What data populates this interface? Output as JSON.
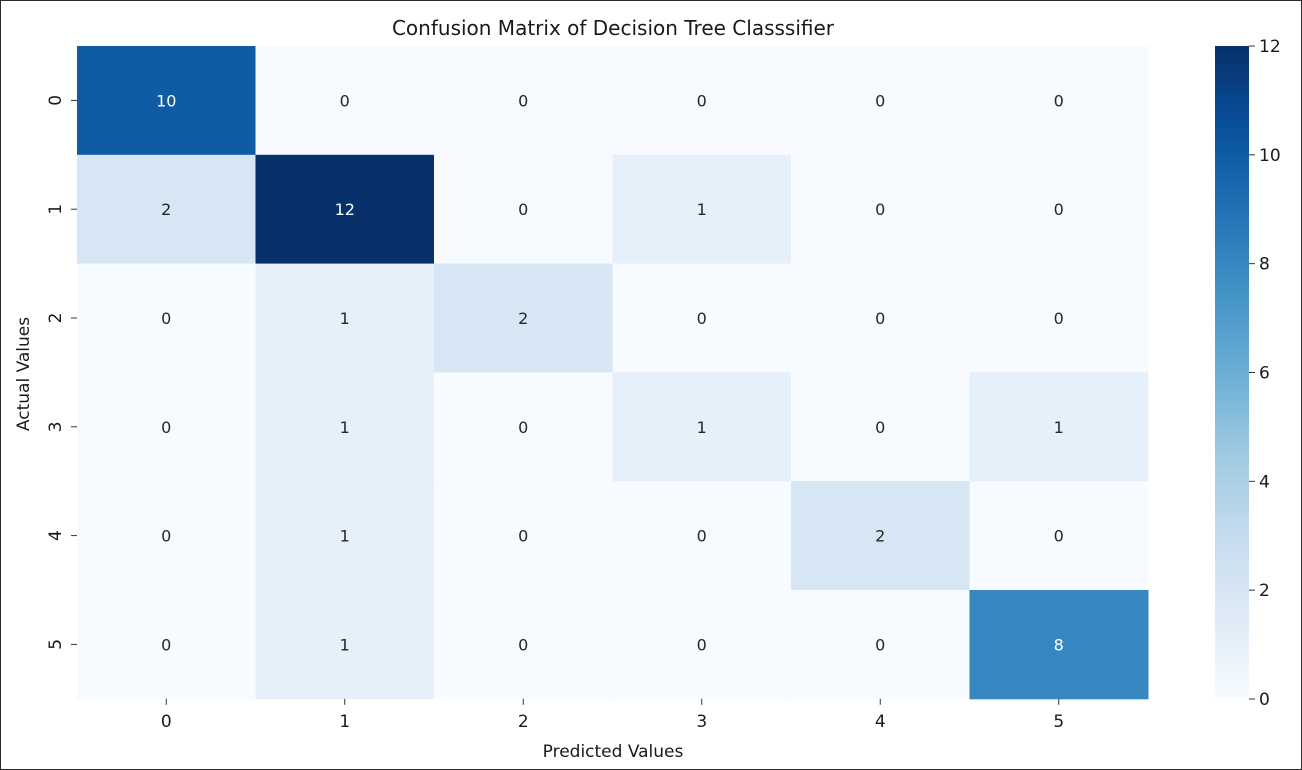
{
  "chart_data": {
    "type": "heatmap",
    "title": "Confusion Matrix of Decision Tree Classsifier",
    "xlabel": "Predicted Values",
    "ylabel": "Actual Values",
    "x_categories": [
      "0",
      "1",
      "2",
      "3",
      "4",
      "5"
    ],
    "y_categories": [
      "0",
      "1",
      "2",
      "3",
      "4",
      "5"
    ],
    "values": [
      [
        10,
        0,
        0,
        0,
        0,
        0
      ],
      [
        2,
        12,
        0,
        1,
        0,
        0
      ],
      [
        0,
        1,
        2,
        0,
        0,
        0
      ],
      [
        0,
        1,
        0,
        1,
        0,
        1
      ],
      [
        0,
        1,
        0,
        0,
        2,
        0
      ],
      [
        0,
        1,
        0,
        0,
        0,
        8
      ]
    ],
    "colormap": "Blues",
    "vmin": 0,
    "vmax": 12,
    "colorbar_ticks": [
      0,
      2,
      4,
      6,
      8,
      10,
      12
    ],
    "annotations": true,
    "grid": false
  }
}
